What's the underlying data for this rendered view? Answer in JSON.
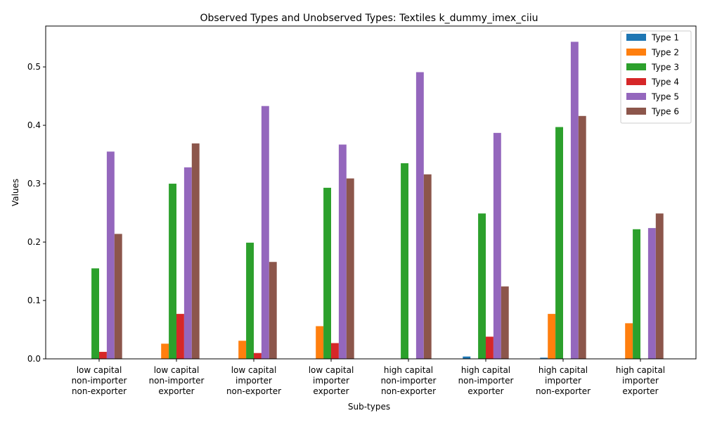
{
  "chart_data": {
    "type": "bar",
    "title": "Observed Types and Unobserved Types: Textiles k_dummy_imex_ciiu",
    "xlabel": "Sub-types",
    "ylabel": "Values",
    "ylim": [
      0,
      0.57
    ],
    "yticks": [
      "0.0",
      "0.1",
      "0.2",
      "0.3",
      "0.4",
      "0.5"
    ],
    "categories": [
      [
        "low capital",
        "non-importer",
        "non-exporter"
      ],
      [
        "low capital",
        "non-importer",
        "exporter"
      ],
      [
        "low capital",
        "importer",
        "non-exporter"
      ],
      [
        "low capital",
        "importer",
        "exporter"
      ],
      [
        "high capital",
        "non-importer",
        "non-exporter"
      ],
      [
        "high capital",
        "non-importer",
        "exporter"
      ],
      [
        "high capital",
        "importer",
        "non-exporter"
      ],
      [
        "high capital",
        "importer",
        "exporter"
      ]
    ],
    "legend_position": "top-right",
    "series": [
      {
        "name": "Type 1",
        "color": "#1f77b4",
        "values": [
          0,
          0,
          0,
          0,
          0,
          0.004,
          0.002,
          0
        ]
      },
      {
        "name": "Type 2",
        "color": "#ff7f0e",
        "values": [
          0,
          0.026,
          0.031,
          0.056,
          0,
          0,
          0.077,
          0.061
        ]
      },
      {
        "name": "Type 3",
        "color": "#2ca02c",
        "values": [
          0.155,
          0.3,
          0.199,
          0.293,
          0.335,
          0.249,
          0.397,
          0.222
        ]
      },
      {
        "name": "Type 4",
        "color": "#d62728",
        "values": [
          0.012,
          0.077,
          0.01,
          0.027,
          0,
          0.038,
          0,
          0
        ]
      },
      {
        "name": "Type 5",
        "color": "#9467bd",
        "values": [
          0.355,
          0.328,
          0.433,
          0.367,
          0.491,
          0.387,
          0.543,
          0.224
        ]
      },
      {
        "name": "Type 6",
        "color": "#8c564b",
        "values": [
          0.214,
          0.369,
          0.166,
          0.309,
          0.316,
          0.124,
          0.416,
          0.249
        ]
      }
    ]
  }
}
